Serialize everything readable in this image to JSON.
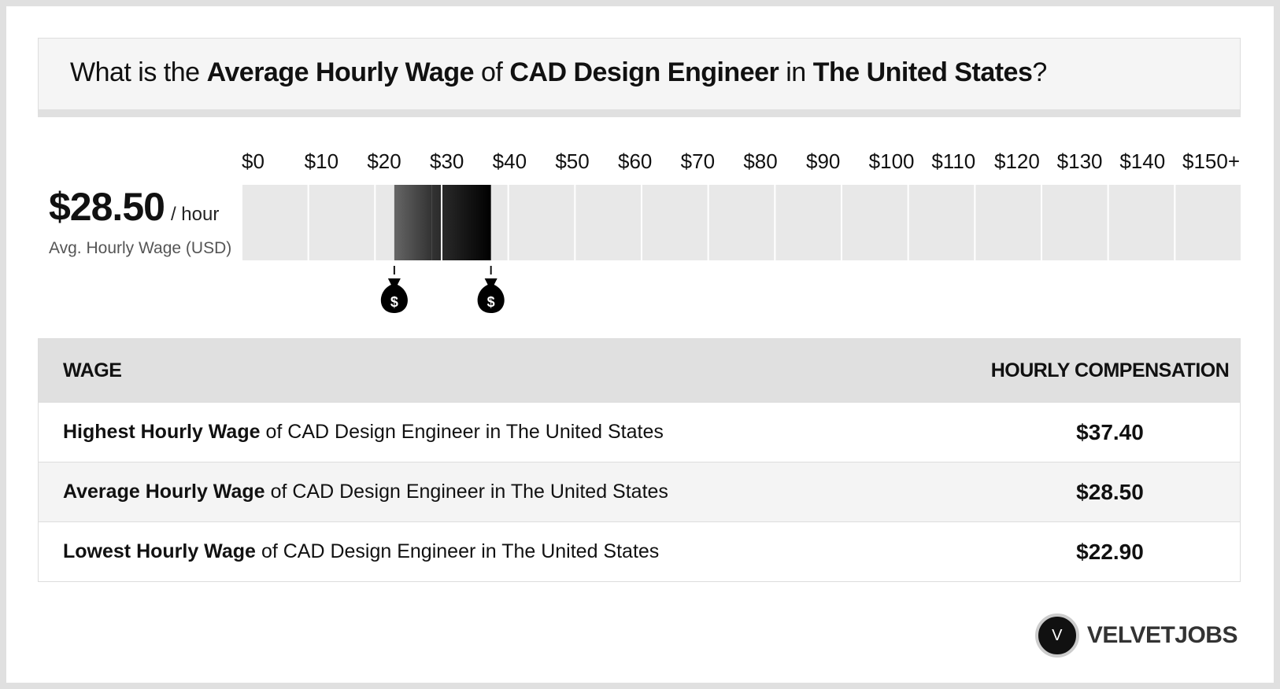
{
  "header": {
    "prefix": "What is the",
    "measure": "Average Hourly Wage",
    "of": "of",
    "job": "CAD Design Engineer",
    "in": "in",
    "place": "The United States",
    "end": "?"
  },
  "summary": {
    "value": "$28.50",
    "unit": "/ hour",
    "caption": "Avg. Hourly Wage (USD)"
  },
  "scale": {
    "range": [
      0,
      150
    ],
    "ticks": [
      {
        "value": 0,
        "label": "$0"
      },
      {
        "value": 10,
        "label": "$10"
      },
      {
        "value": 20,
        "label": "$20"
      },
      {
        "value": 30,
        "label": "$30"
      },
      {
        "value": 40,
        "label": "$40"
      },
      {
        "value": 50,
        "label": "$50"
      },
      {
        "value": 60,
        "label": "$60"
      },
      {
        "value": 70,
        "label": "$70"
      },
      {
        "value": 80,
        "label": "$80"
      },
      {
        "value": 90,
        "label": "$90"
      },
      {
        "value": 100,
        "label": "$100"
      },
      {
        "value": 110,
        "label": "$110"
      },
      {
        "value": 120,
        "label": "$120"
      },
      {
        "value": 130,
        "label": "$130"
      },
      {
        "value": 140,
        "label": "$140"
      },
      {
        "value": 150,
        "label": "$150+"
      }
    ],
    "low": 22.9,
    "average": 28.5,
    "high": 37.4,
    "marker_symbol": "$"
  },
  "table": {
    "headers": [
      "WAGE",
      "HOURLY COMPENSATION"
    ],
    "rows": [
      [
        "Highest Hourly Wage",
        "of CAD Design Engineer in The United States",
        "$37.40"
      ],
      [
        "Average Hourly Wage",
        "of CAD Design Engineer in The United States",
        "$28.50"
      ],
      [
        "Lowest Hourly Wage",
        "of CAD Design Engineer in The United States",
        "$22.90"
      ]
    ]
  },
  "logo": {
    "letter": "V",
    "name": "VELVETJOBS"
  }
}
